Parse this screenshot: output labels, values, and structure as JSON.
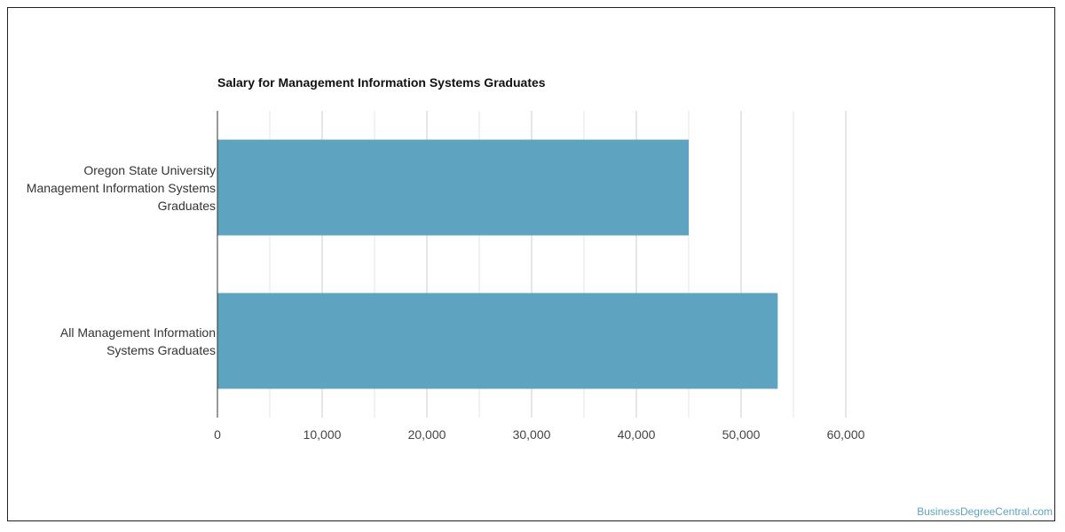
{
  "chart_data": {
    "type": "bar",
    "orientation": "horizontal",
    "title": "Salary for Management Information Systems Graduates",
    "categories": [
      [
        "Oregon State University",
        "Management Information Systems",
        "Graduates"
      ],
      [
        "All Management Information",
        "Systems Graduates"
      ]
    ],
    "values": [
      45000,
      53500
    ],
    "xlim": [
      0,
      60000
    ],
    "xticks": [
      "0",
      "10,000",
      "20,000",
      "30,000",
      "40,000",
      "50,000",
      "60,000"
    ],
    "grid": true,
    "bar_color": "#5ea3bf"
  },
  "watermark": "BusinessDegreeCentral.com"
}
